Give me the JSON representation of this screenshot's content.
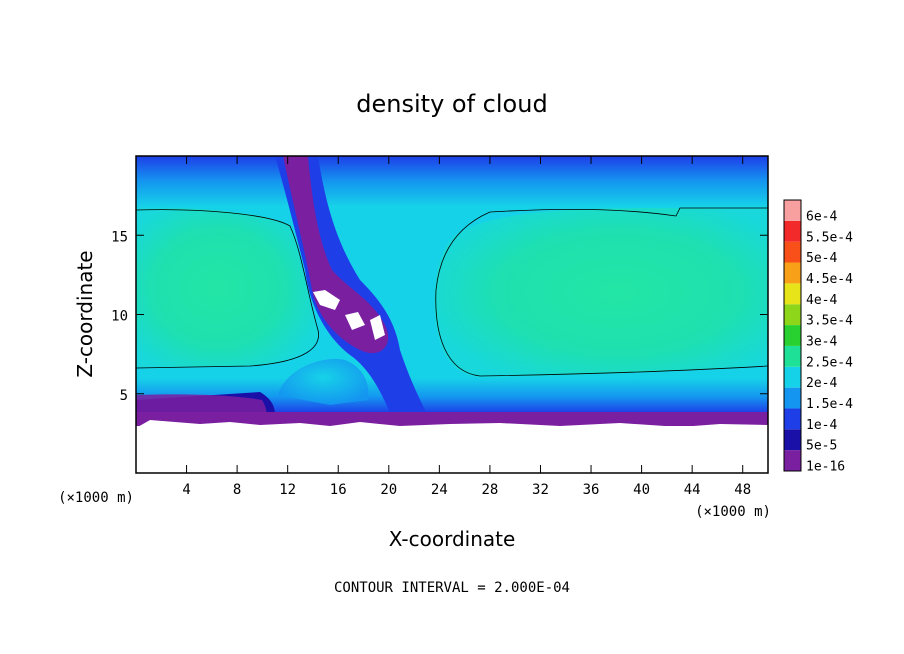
{
  "chart_data": {
    "type": "heatmap",
    "title": "density of cloud",
    "xlabel": "X-coordinate",
    "ylabel": "Z-coordinate",
    "x_unit": "(×1000 m)",
    "xlim": [
      0,
      50
    ],
    "ylim": [
      0,
      20
    ],
    "x_ticks": [
      4,
      8,
      12,
      16,
      20,
      24,
      28,
      32,
      36,
      40,
      44,
      48
    ],
    "y_ticks": [
      5,
      10,
      15
    ],
    "contour_interval_text": "CONTOUR INTERVAL = 2.000E-04",
    "colorbar": {
      "levels": [
        {
          "label": "1e-16",
          "color": "#7a1fa0"
        },
        {
          "label": "5e-5",
          "color": "#1a10a8"
        },
        {
          "label": "1e-4",
          "color": "#1e3ee8"
        },
        {
          "label": "1.5e-4",
          "color": "#1496f0"
        },
        {
          "label": "2e-4",
          "color": "#16d2e8"
        },
        {
          "label": "2.5e-4",
          "color": "#1ee096"
        },
        {
          "label": "3e-4",
          "color": "#28d030"
        },
        {
          "label": "3.5e-4",
          "color": "#8ed61a"
        },
        {
          "label": "4e-4",
          "color": "#e8e41a"
        },
        {
          "label": "4.5e-4",
          "color": "#f8a018"
        },
        {
          "label": "5e-4",
          "color": "#f85018"
        },
        {
          "label": "5.5e-4",
          "color": "#f22a2a"
        },
        {
          "label": "6e-4",
          "color": "#f8a0a0"
        }
      ]
    },
    "regions": [
      {
        "name": "left-cloud-core",
        "x_range": [
          0,
          14
        ],
        "z_range": [
          7,
          16
        ],
        "value": 0.00026
      },
      {
        "name": "right-cloud-core",
        "x_range": [
          23,
          50
        ],
        "z_range": [
          6,
          17
        ],
        "value": 0.00026
      },
      {
        "name": "central-updraft",
        "x_range": [
          12,
          21
        ],
        "z_range": [
          3,
          20
        ],
        "value": 0
      }
    ]
  }
}
